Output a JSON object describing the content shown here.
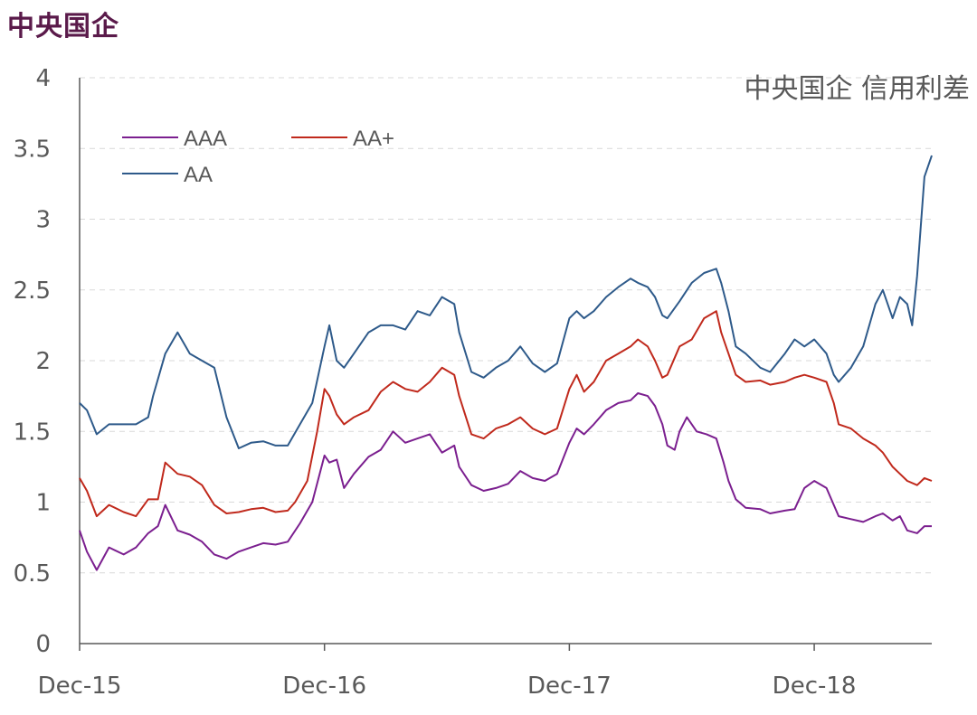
{
  "page_title": "中央国企",
  "chart_data": {
    "type": "line",
    "title": "中央国企 信用利差",
    "xlabel": "",
    "ylabel": "",
    "ylim": [
      0,
      4
    ],
    "yticks": [
      "0",
      "0.5",
      "1",
      "1.5",
      "2",
      "2.5",
      "3",
      "3.5",
      "4"
    ],
    "xlim": [
      0,
      3.48
    ],
    "xticks": [
      {
        "label": "Dec-15",
        "x": 0
      },
      {
        "label": "Dec-16",
        "x": 1
      },
      {
        "label": "Dec-17",
        "x": 2
      },
      {
        "label": "Dec-18",
        "x": 3
      }
    ],
    "grid": "horizontal-dashed",
    "legend_position": "top-left",
    "series": [
      {
        "name": "AAA",
        "color": "#7b1f8f",
        "points": [
          [
            0.0,
            0.8
          ],
          [
            0.03,
            0.65
          ],
          [
            0.07,
            0.52
          ],
          [
            0.12,
            0.68
          ],
          [
            0.18,
            0.63
          ],
          [
            0.23,
            0.68
          ],
          [
            0.28,
            0.78
          ],
          [
            0.32,
            0.83
          ],
          [
            0.35,
            0.98
          ],
          [
            0.4,
            0.8
          ],
          [
            0.45,
            0.77
          ],
          [
            0.5,
            0.72
          ],
          [
            0.55,
            0.63
          ],
          [
            0.6,
            0.6
          ],
          [
            0.65,
            0.65
          ],
          [
            0.7,
            0.68
          ],
          [
            0.75,
            0.71
          ],
          [
            0.8,
            0.7
          ],
          [
            0.85,
            0.72
          ],
          [
            0.9,
            0.85
          ],
          [
            0.95,
            1.0
          ],
          [
            1.0,
            1.33
          ],
          [
            1.02,
            1.28
          ],
          [
            1.05,
            1.3
          ],
          [
            1.08,
            1.1
          ],
          [
            1.12,
            1.2
          ],
          [
            1.18,
            1.32
          ],
          [
            1.23,
            1.37
          ],
          [
            1.28,
            1.5
          ],
          [
            1.33,
            1.42
          ],
          [
            1.38,
            1.45
          ],
          [
            1.43,
            1.48
          ],
          [
            1.48,
            1.35
          ],
          [
            1.53,
            1.4
          ],
          [
            1.55,
            1.25
          ],
          [
            1.6,
            1.12
          ],
          [
            1.65,
            1.08
          ],
          [
            1.7,
            1.1
          ],
          [
            1.75,
            1.13
          ],
          [
            1.8,
            1.22
          ],
          [
            1.85,
            1.17
          ],
          [
            1.9,
            1.15
          ],
          [
            1.95,
            1.2
          ],
          [
            2.0,
            1.42
          ],
          [
            2.03,
            1.52
          ],
          [
            2.06,
            1.48
          ],
          [
            2.1,
            1.55
          ],
          [
            2.15,
            1.65
          ],
          [
            2.2,
            1.7
          ],
          [
            2.25,
            1.72
          ],
          [
            2.28,
            1.77
          ],
          [
            2.32,
            1.75
          ],
          [
            2.35,
            1.68
          ],
          [
            2.38,
            1.55
          ],
          [
            2.4,
            1.4
          ],
          [
            2.43,
            1.37
          ],
          [
            2.45,
            1.5
          ],
          [
            2.48,
            1.6
          ],
          [
            2.52,
            1.5
          ],
          [
            2.56,
            1.48
          ],
          [
            2.6,
            1.45
          ],
          [
            2.63,
            1.28
          ],
          [
            2.65,
            1.15
          ],
          [
            2.68,
            1.02
          ],
          [
            2.72,
            0.96
          ],
          [
            2.78,
            0.95
          ],
          [
            2.82,
            0.92
          ],
          [
            2.88,
            0.94
          ],
          [
            2.92,
            0.95
          ],
          [
            2.96,
            1.1
          ],
          [
            3.0,
            1.15
          ],
          [
            3.05,
            1.1
          ],
          [
            3.08,
            0.98
          ],
          [
            3.1,
            0.9
          ],
          [
            3.15,
            0.88
          ],
          [
            3.2,
            0.86
          ],
          [
            3.25,
            0.9
          ],
          [
            3.28,
            0.92
          ],
          [
            3.32,
            0.87
          ],
          [
            3.35,
            0.9
          ],
          [
            3.38,
            0.8
          ],
          [
            3.42,
            0.78
          ],
          [
            3.45,
            0.83
          ],
          [
            3.48,
            0.83
          ]
        ]
      },
      {
        "name": "AA+",
        "color": "#c0291c",
        "points": [
          [
            0.0,
            1.17
          ],
          [
            0.03,
            1.08
          ],
          [
            0.07,
            0.9
          ],
          [
            0.12,
            0.98
          ],
          [
            0.18,
            0.93
          ],
          [
            0.23,
            0.9
          ],
          [
            0.28,
            1.02
          ],
          [
            0.32,
            1.02
          ],
          [
            0.35,
            1.28
          ],
          [
            0.4,
            1.2
          ],
          [
            0.45,
            1.18
          ],
          [
            0.5,
            1.12
          ],
          [
            0.55,
            0.98
          ],
          [
            0.6,
            0.92
          ],
          [
            0.65,
            0.93
          ],
          [
            0.7,
            0.95
          ],
          [
            0.75,
            0.96
          ],
          [
            0.8,
            0.93
          ],
          [
            0.85,
            0.94
          ],
          [
            0.88,
            1.0
          ],
          [
            0.93,
            1.15
          ],
          [
            0.97,
            1.5
          ],
          [
            1.0,
            1.8
          ],
          [
            1.02,
            1.75
          ],
          [
            1.05,
            1.62
          ],
          [
            1.08,
            1.55
          ],
          [
            1.12,
            1.6
          ],
          [
            1.18,
            1.65
          ],
          [
            1.23,
            1.78
          ],
          [
            1.28,
            1.85
          ],
          [
            1.33,
            1.8
          ],
          [
            1.38,
            1.78
          ],
          [
            1.43,
            1.85
          ],
          [
            1.48,
            1.95
          ],
          [
            1.53,
            1.9
          ],
          [
            1.55,
            1.75
          ],
          [
            1.6,
            1.48
          ],
          [
            1.65,
            1.45
          ],
          [
            1.7,
            1.52
          ],
          [
            1.75,
            1.55
          ],
          [
            1.8,
            1.6
          ],
          [
            1.85,
            1.52
          ],
          [
            1.9,
            1.48
          ],
          [
            1.95,
            1.52
          ],
          [
            2.0,
            1.8
          ],
          [
            2.03,
            1.9
          ],
          [
            2.06,
            1.78
          ],
          [
            2.1,
            1.85
          ],
          [
            2.15,
            2.0
          ],
          [
            2.2,
            2.05
          ],
          [
            2.25,
            2.1
          ],
          [
            2.28,
            2.15
          ],
          [
            2.32,
            2.1
          ],
          [
            2.35,
            2.0
          ],
          [
            2.38,
            1.88
          ],
          [
            2.4,
            1.9
          ],
          [
            2.45,
            2.1
          ],
          [
            2.5,
            2.15
          ],
          [
            2.55,
            2.3
          ],
          [
            2.6,
            2.35
          ],
          [
            2.62,
            2.2
          ],
          [
            2.65,
            2.05
          ],
          [
            2.68,
            1.9
          ],
          [
            2.72,
            1.85
          ],
          [
            2.78,
            1.86
          ],
          [
            2.82,
            1.83
          ],
          [
            2.88,
            1.85
          ],
          [
            2.92,
            1.88
          ],
          [
            2.96,
            1.9
          ],
          [
            3.0,
            1.88
          ],
          [
            3.05,
            1.85
          ],
          [
            3.08,
            1.7
          ],
          [
            3.1,
            1.55
          ],
          [
            3.15,
            1.52
          ],
          [
            3.2,
            1.45
          ],
          [
            3.25,
            1.4
          ],
          [
            3.28,
            1.35
          ],
          [
            3.32,
            1.25
          ],
          [
            3.35,
            1.2
          ],
          [
            3.38,
            1.15
          ],
          [
            3.42,
            1.12
          ],
          [
            3.45,
            1.17
          ],
          [
            3.48,
            1.15
          ]
        ]
      },
      {
        "name": "AA",
        "color": "#2e5a8a",
        "points": [
          [
            0.0,
            1.7
          ],
          [
            0.03,
            1.65
          ],
          [
            0.07,
            1.48
          ],
          [
            0.12,
            1.55
          ],
          [
            0.18,
            1.55
          ],
          [
            0.23,
            1.55
          ],
          [
            0.28,
            1.6
          ],
          [
            0.3,
            1.75
          ],
          [
            0.35,
            2.05
          ],
          [
            0.4,
            2.2
          ],
          [
            0.45,
            2.05
          ],
          [
            0.5,
            2.0
          ],
          [
            0.55,
            1.95
          ],
          [
            0.6,
            1.6
          ],
          [
            0.65,
            1.38
          ],
          [
            0.7,
            1.42
          ],
          [
            0.75,
            1.43
          ],
          [
            0.8,
            1.4
          ],
          [
            0.85,
            1.4
          ],
          [
            0.9,
            1.55
          ],
          [
            0.95,
            1.7
          ],
          [
            1.0,
            2.1
          ],
          [
            1.02,
            2.25
          ],
          [
            1.05,
            2.0
          ],
          [
            1.08,
            1.95
          ],
          [
            1.12,
            2.05
          ],
          [
            1.18,
            2.2
          ],
          [
            1.23,
            2.25
          ],
          [
            1.28,
            2.25
          ],
          [
            1.33,
            2.22
          ],
          [
            1.38,
            2.35
          ],
          [
            1.43,
            2.32
          ],
          [
            1.48,
            2.45
          ],
          [
            1.53,
            2.4
          ],
          [
            1.55,
            2.2
          ],
          [
            1.6,
            1.92
          ],
          [
            1.65,
            1.88
          ],
          [
            1.7,
            1.95
          ],
          [
            1.75,
            2.0
          ],
          [
            1.8,
            2.1
          ],
          [
            1.85,
            1.98
          ],
          [
            1.9,
            1.92
          ],
          [
            1.95,
            1.98
          ],
          [
            2.0,
            2.3
          ],
          [
            2.03,
            2.35
          ],
          [
            2.06,
            2.3
          ],
          [
            2.1,
            2.35
          ],
          [
            2.15,
            2.45
          ],
          [
            2.2,
            2.52
          ],
          [
            2.25,
            2.58
          ],
          [
            2.28,
            2.55
          ],
          [
            2.32,
            2.52
          ],
          [
            2.35,
            2.45
          ],
          [
            2.38,
            2.32
          ],
          [
            2.4,
            2.3
          ],
          [
            2.45,
            2.42
          ],
          [
            2.5,
            2.55
          ],
          [
            2.55,
            2.62
          ],
          [
            2.6,
            2.65
          ],
          [
            2.62,
            2.55
          ],
          [
            2.65,
            2.35
          ],
          [
            2.68,
            2.1
          ],
          [
            2.72,
            2.05
          ],
          [
            2.78,
            1.95
          ],
          [
            2.82,
            1.92
          ],
          [
            2.88,
            2.05
          ],
          [
            2.92,
            2.15
          ],
          [
            2.96,
            2.1
          ],
          [
            3.0,
            2.15
          ],
          [
            3.05,
            2.05
          ],
          [
            3.08,
            1.9
          ],
          [
            3.1,
            1.85
          ],
          [
            3.15,
            1.95
          ],
          [
            3.2,
            2.1
          ],
          [
            3.25,
            2.4
          ],
          [
            3.28,
            2.5
          ],
          [
            3.32,
            2.3
          ],
          [
            3.35,
            2.45
          ],
          [
            3.38,
            2.4
          ],
          [
            3.4,
            2.25
          ],
          [
            3.42,
            2.6
          ],
          [
            3.45,
            3.3
          ],
          [
            3.48,
            3.45
          ]
        ]
      }
    ]
  }
}
